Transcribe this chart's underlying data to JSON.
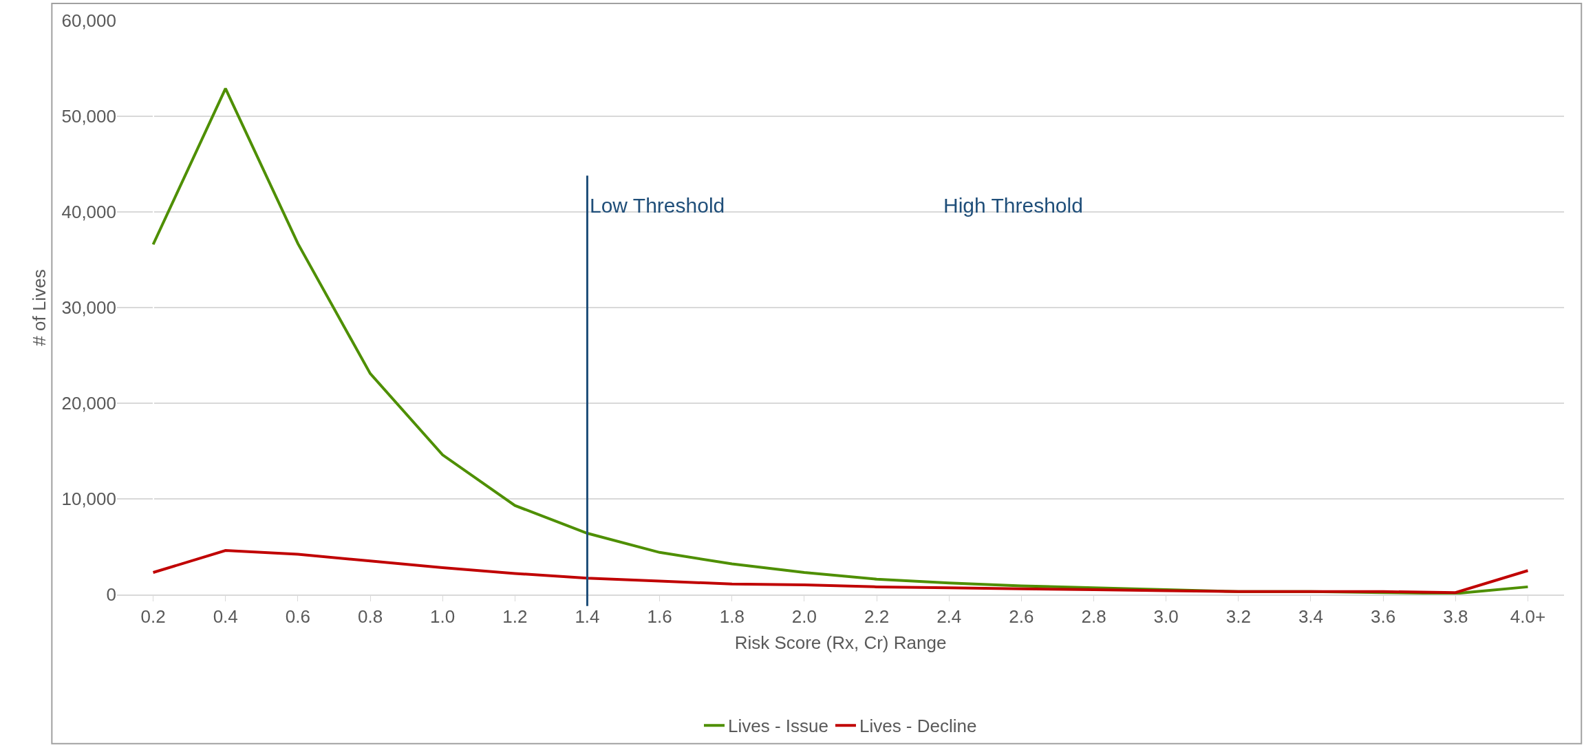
{
  "chart_data": {
    "type": "line",
    "xlabel": "Risk Score (Rx, Cr) Range",
    "ylabel": "# of Lives",
    "categories": [
      "0.2",
      "0.4",
      "0.6",
      "0.8",
      "1.0",
      "1.2",
      "1.4",
      "1.6",
      "1.8",
      "2.0",
      "2.2",
      "2.4",
      "2.6",
      "2.8",
      "3.0",
      "3.2",
      "3.4",
      "3.6",
      "3.8",
      "4.0+"
    ],
    "series": [
      {
        "name": "Lives - Issue",
        "color": "#4e8f00",
        "values": [
          36600,
          52900,
          36700,
          23100,
          14600,
          9300,
          6400,
          4400,
          3200,
          2300,
          1600,
          1200,
          900,
          700,
          500,
          300,
          300,
          200,
          100,
          800
        ]
      },
      {
        "name": "Lives - Decline",
        "color": "#c00000",
        "values": [
          2300,
          4600,
          4200,
          3500,
          2800,
          2200,
          1700,
          1400,
          1100,
          1000,
          800,
          700,
          600,
          500,
          400,
          300,
          300,
          300,
          200,
          2500
        ]
      }
    ],
    "ylim": [
      0,
      60000
    ],
    "yticks": [
      {
        "value": 0,
        "label": "0"
      },
      {
        "value": 10000,
        "label": "10,000"
      },
      {
        "value": 20000,
        "label": "20,000"
      },
      {
        "value": 30000,
        "label": "30,000"
      },
      {
        "value": 40000,
        "label": "40,000"
      },
      {
        "value": 50000,
        "label": "50,000"
      },
      {
        "value": 60000,
        "label": "60,000"
      }
    ],
    "ref_lines": [
      {
        "axis": "x",
        "value": "1.4",
        "label": "Low Threshold",
        "color": "#1f4e79"
      }
    ],
    "annotations": [
      "High Threshold"
    ],
    "grid": "y",
    "legend": "bottom",
    "marker": "none",
    "line_style": "solid"
  }
}
